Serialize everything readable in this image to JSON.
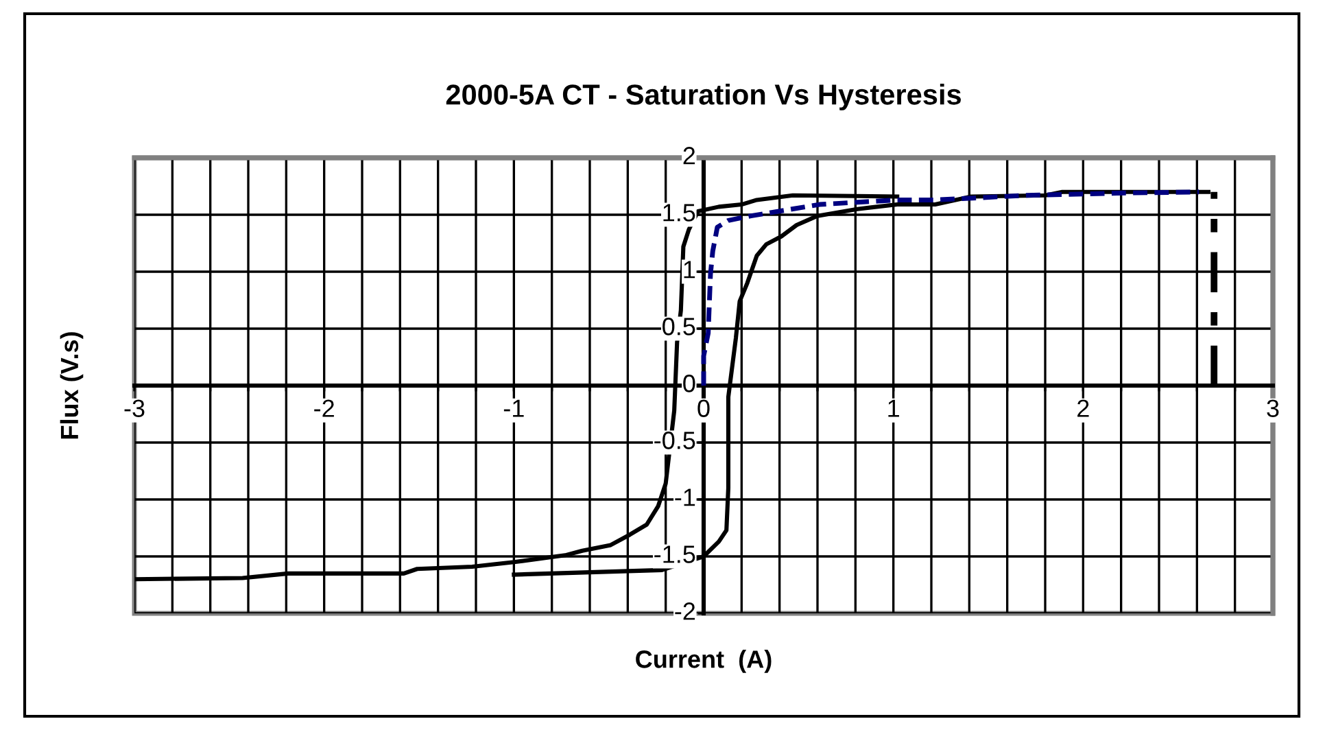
{
  "chart_data": {
    "type": "line",
    "title": "2000-5A CT - Saturation Vs Hysteresis",
    "xlabel": "Current  (A)",
    "ylabel": "Flux (V.s)",
    "xlim": [
      -3,
      3
    ],
    "ylim": [
      -2,
      2
    ],
    "xticks": [
      -3,
      {
        "value": -2.8,
        "label": null
      },
      {
        "value": -2.6,
        "label": null
      },
      {
        "value": -2.4,
        "label": null
      },
      {
        "value": -2.2,
        "label": null
      },
      -2,
      {
        "value": -1.8,
        "label": null
      },
      {
        "value": -1.6,
        "label": null
      },
      {
        "value": -1.4,
        "label": null
      },
      {
        "value": -1.2,
        "label": null
      },
      -1,
      {
        "value": -0.8,
        "label": null
      },
      {
        "value": -0.6,
        "label": null
      },
      {
        "value": -0.4,
        "label": null
      },
      {
        "value": -0.2,
        "label": null
      },
      0,
      {
        "value": 0.2,
        "label": null
      },
      {
        "value": 0.4,
        "label": null
      },
      {
        "value": 0.6,
        "label": null
      },
      {
        "value": 0.8,
        "label": null
      },
      1,
      {
        "value": 1.2,
        "label": null
      },
      {
        "value": 1.4,
        "label": null
      },
      {
        "value": 1.6,
        "label": null
      },
      {
        "value": 1.8,
        "label": null
      },
      2,
      {
        "value": 2.2,
        "label": null
      },
      {
        "value": 2.4,
        "label": null
      },
      {
        "value": 2.6,
        "label": null
      },
      {
        "value": 2.8,
        "label": null
      },
      3
    ],
    "yticks": [
      -2,
      -1.5,
      -1,
      -0.5,
      0,
      0.5,
      1,
      1.5,
      2
    ],
    "grid": true,
    "series": [
      {
        "color": "#000000",
        "line_style": "solid",
        "x": [
          1.02,
          0.47,
          0.28,
          0.2,
          0.08,
          -0.03,
          -0.078,
          -0.107,
          -0.12,
          -0.14,
          -0.155,
          -0.2,
          -0.24,
          -0.3,
          -0.39,
          -0.49,
          -0.64,
          -0.73,
          -1.0,
          -1.22,
          -1.51,
          -1.58,
          -2.19,
          -2.43,
          -3.0
        ],
        "values": [
          1.66,
          1.67,
          1.63,
          1.59,
          1.57,
          1.53,
          1.37,
          1.22,
          0.66,
          0.38,
          -0.22,
          -0.86,
          -1.06,
          -1.22,
          -1.31,
          -1.4,
          -1.45,
          -1.49,
          -1.55,
          -1.59,
          -1.61,
          -1.65,
          -1.65,
          -1.69,
          -1.7
        ]
      },
      {
        "color": "#000000",
        "line_style": "solid",
        "x": [
          -1.0,
          -0.22,
          0.0,
          0.08,
          0.12,
          0.13,
          0.13,
          0.17,
          0.19,
          0.23,
          0.28,
          0.33,
          0.41,
          0.49,
          0.6,
          0.81,
          1.02,
          1.22,
          1.41,
          1.8,
          1.89,
          2.66
        ],
        "values": [
          -1.66,
          -1.62,
          -1.5,
          -1.37,
          -1.27,
          -0.9,
          -0.1,
          0.42,
          0.74,
          0.9,
          1.14,
          1.24,
          1.31,
          1.41,
          1.49,
          1.55,
          1.59,
          1.59,
          1.66,
          1.67,
          1.7,
          1.7
        ]
      },
      {
        "color": "#000080",
        "line_style": "dashed",
        "x": [
          0,
          0,
          0.024,
          0.036,
          0.048,
          0.072,
          0.13,
          0.25,
          0.61,
          1.02,
          1.22,
          1.7,
          2.18,
          2.61
        ],
        "values": [
          0,
          0.26,
          0.46,
          0.98,
          1.18,
          1.39,
          1.45,
          1.49,
          1.59,
          1.63,
          1.63,
          1.67,
          1.69,
          1.7
        ]
      },
      {
        "color": "#000000",
        "line_style": "dashdot",
        "x": [
          2.69,
          2.69
        ],
        "values": [
          0,
          1.7
        ]
      }
    ]
  }
}
